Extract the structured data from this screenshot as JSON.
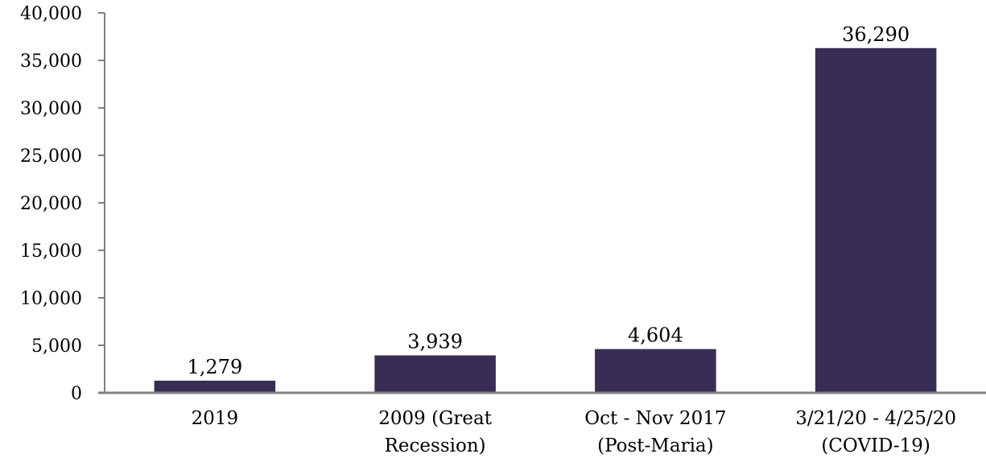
{
  "colors": {
    "bar": "#382d55",
    "axis": "#808080",
    "text": "#000000"
  },
  "chart_data": {
    "type": "bar",
    "categories": [
      [
        "2019"
      ],
      [
        "2009 (Great",
        "Recession)"
      ],
      [
        "Oct - Nov 2017",
        "(Post-Maria)"
      ],
      [
        "3/21/20 - 4/25/20",
        "(COVID-19)"
      ]
    ],
    "values": [
      1279,
      3939,
      4604,
      36290
    ],
    "value_labels": [
      "1,279",
      "3,939",
      "4,604",
      "36,290"
    ],
    "title": "",
    "xlabel": "",
    "ylabel": "",
    "ylim": [
      0,
      40000
    ],
    "yticks": [
      0,
      5000,
      10000,
      15000,
      20000,
      25000,
      30000,
      35000,
      40000
    ],
    "ytick_labels": [
      "0",
      "5,000",
      "10,000",
      "15,000",
      "20,000",
      "25,000",
      "30,000",
      "35,000",
      "40,000"
    ],
    "grid": false,
    "legend": "none"
  }
}
